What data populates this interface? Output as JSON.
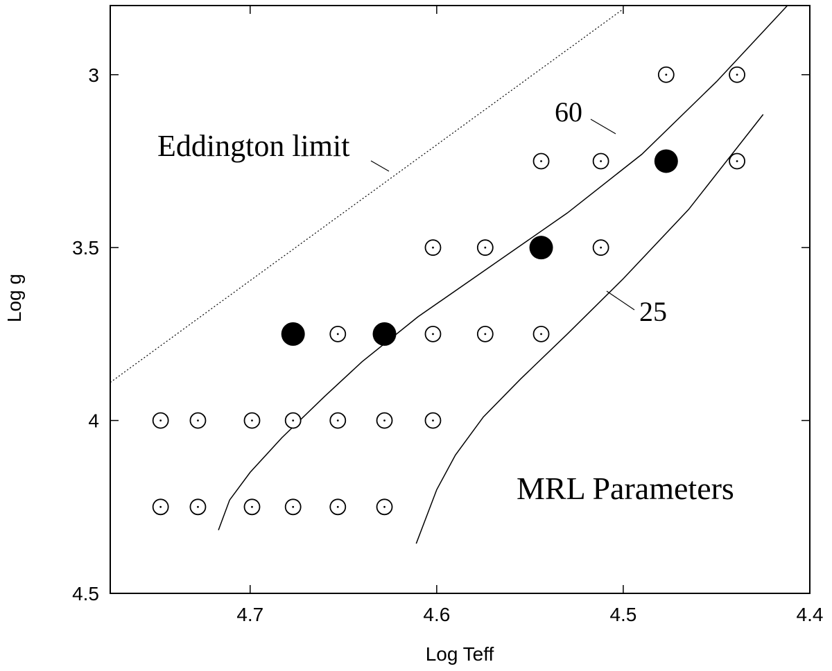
{
  "chart_data": {
    "type": "scatter",
    "title": "",
    "xlabel": "Log Teff",
    "ylabel": "Log g",
    "xlim": [
      4.775,
      4.4
    ],
    "ylim": [
      4.5,
      2.8
    ],
    "x_reversed": true,
    "y_reversed": true,
    "xticks": [
      "4.7",
      "4.6",
      "4.5",
      "4.4"
    ],
    "xtick_values": [
      4.7,
      4.6,
      4.5,
      4.4
    ],
    "yticks": [
      "3",
      "3.5",
      "4",
      "4.5"
    ],
    "ytick_values": [
      3.0,
      3.5,
      4.0,
      4.5
    ],
    "grid": false,
    "open_points": [
      {
        "x": 4.477,
        "y": 3.0
      },
      {
        "x": 4.439,
        "y": 3.0
      },
      {
        "x": 4.544,
        "y": 3.25
      },
      {
        "x": 4.512,
        "y": 3.25
      },
      {
        "x": 4.439,
        "y": 3.25
      },
      {
        "x": 4.602,
        "y": 3.5
      },
      {
        "x": 4.574,
        "y": 3.5
      },
      {
        "x": 4.512,
        "y": 3.5
      },
      {
        "x": 4.653,
        "y": 3.75
      },
      {
        "x": 4.602,
        "y": 3.75
      },
      {
        "x": 4.574,
        "y": 3.75
      },
      {
        "x": 4.544,
        "y": 3.75
      },
      {
        "x": 4.748,
        "y": 4.0
      },
      {
        "x": 4.728,
        "y": 4.0
      },
      {
        "x": 4.699,
        "y": 4.0
      },
      {
        "x": 4.677,
        "y": 4.0
      },
      {
        "x": 4.653,
        "y": 4.0
      },
      {
        "x": 4.628,
        "y": 4.0
      },
      {
        "x": 4.602,
        "y": 4.0
      },
      {
        "x": 4.748,
        "y": 4.25
      },
      {
        "x": 4.728,
        "y": 4.25
      },
      {
        "x": 4.699,
        "y": 4.25
      },
      {
        "x": 4.677,
        "y": 4.25
      },
      {
        "x": 4.653,
        "y": 4.25
      },
      {
        "x": 4.628,
        "y": 4.25
      }
    ],
    "filled_points": [
      {
        "x": 4.677,
        "y": 3.75
      },
      {
        "x": 4.628,
        "y": 3.75
      },
      {
        "x": 4.544,
        "y": 3.5
      },
      {
        "x": 4.477,
        "y": 3.25
      }
    ],
    "track_60": {
      "label": "60",
      "x": [
        4.717,
        4.711,
        4.7,
        4.683,
        4.66,
        4.64,
        4.61,
        4.57,
        4.53,
        4.49,
        4.45,
        4.412
      ],
      "y": [
        4.317,
        4.23,
        4.15,
        4.05,
        3.93,
        3.83,
        3.7,
        3.55,
        3.4,
        3.23,
        3.02,
        2.8
      ]
    },
    "track_25": {
      "label": "25",
      "x": [
        4.611,
        4.6,
        4.59,
        4.575,
        4.555,
        4.53,
        4.5,
        4.465,
        4.425
      ],
      "y": [
        4.356,
        4.2,
        4.1,
        3.99,
        3.88,
        3.75,
        3.59,
        3.39,
        3.115
      ]
    },
    "eddington": {
      "label": "Eddington limit",
      "x": [
        4.775,
        4.5
      ],
      "y": [
        3.89,
        2.81
      ]
    },
    "annotation": "MRL Parameters"
  }
}
